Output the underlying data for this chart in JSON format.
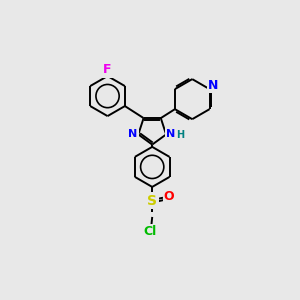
{
  "background_color": "#e8e8e8",
  "bond_color": "#000000",
  "atom_colors": {
    "F": "#ee00ee",
    "N": "#0000ff",
    "S": "#cccc00",
    "O": "#ff0000",
    "Cl": "#00bb00",
    "H": "#008080"
  },
  "figsize": [
    3.0,
    3.0
  ],
  "dpi": 100
}
